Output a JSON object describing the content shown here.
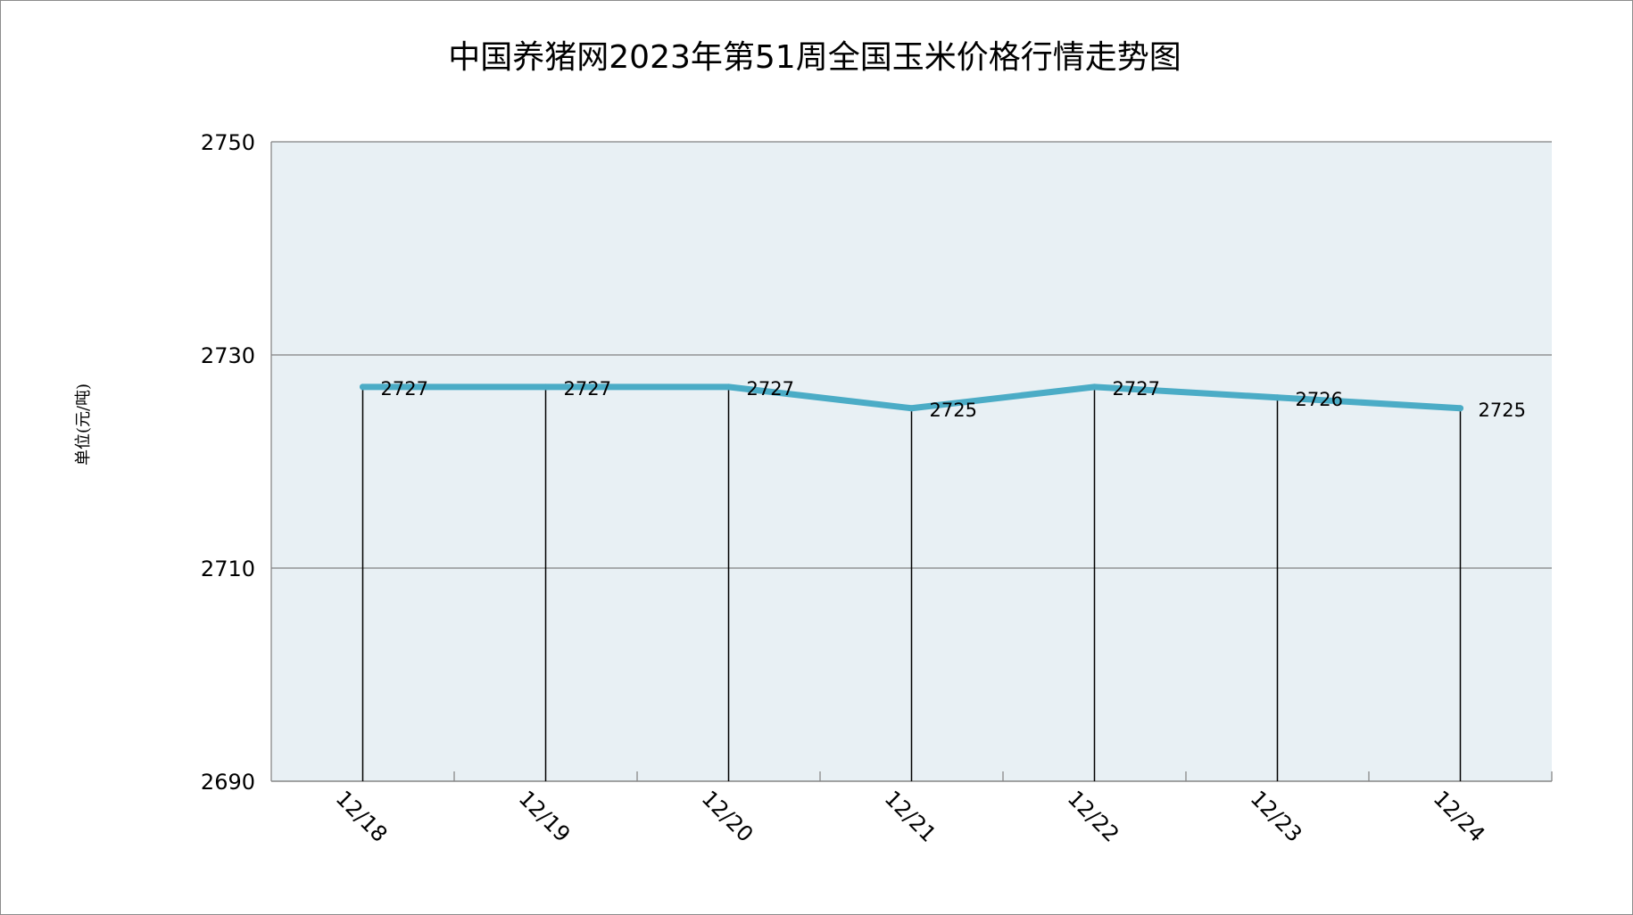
{
  "chart_data": {
    "type": "line",
    "title": "中国养猪网2023年第51周全国玉米价格行情走势图",
    "ylabel": "单位(元/吨)",
    "xlabel": "",
    "categories": [
      "12/18",
      "12/19",
      "12/20",
      "12/21",
      "12/22",
      "12/23",
      "12/24"
    ],
    "series": [
      {
        "values": [
          2727,
          2727,
          2727,
          2725,
          2727,
          2726,
          2725
        ],
        "labels": [
          "2727",
          "2727",
          "2727",
          "2725",
          "2727",
          "2726",
          "2725"
        ],
        "color": "#4bacc6"
      }
    ],
    "ylim": [
      2690,
      2750
    ],
    "yticks": [
      {
        "value": 2690,
        "label": "2690"
      },
      {
        "value": 2710,
        "label": "2710"
      },
      {
        "value": 2730,
        "label": "2730"
      },
      {
        "value": 2750,
        "label": "2750"
      }
    ],
    "grid": true,
    "drop_lines": true,
    "plot_background": "#e8f0f4",
    "grid_color": "#808080"
  }
}
